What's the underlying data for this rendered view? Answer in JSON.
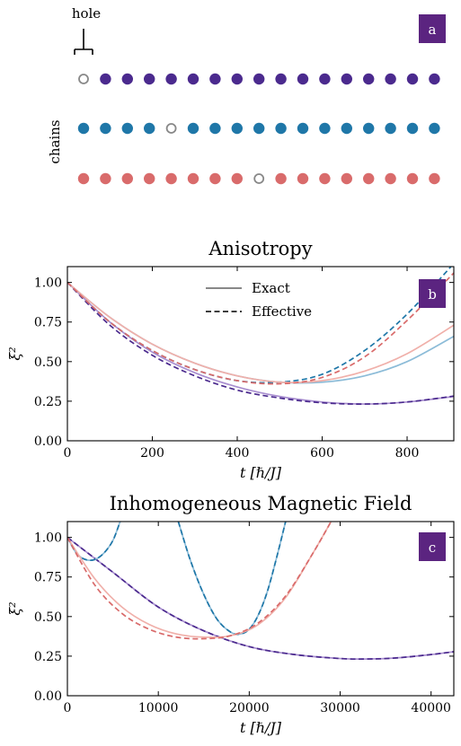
{
  "colors": {
    "purple": "#4b2a8e",
    "purple_light": "#a98fd0",
    "teal": "#1f77a8",
    "teal_light": "#8cbcd8",
    "salmon": "#d96b6b",
    "salmon_light": "#f0b0aa",
    "hole": "#888888",
    "badge": "#5b2480",
    "axis": "#000000"
  },
  "panel_a": {
    "badge": "a",
    "hole_label": "hole",
    "y_label": "chains",
    "sites_per_chain": 17,
    "chains": [
      {
        "color_key": "purple",
        "hole_index": 0
      },
      {
        "color_key": "teal",
        "hole_index": 4
      },
      {
        "color_key": "salmon",
        "hole_index": 8
      }
    ]
  },
  "chart_data": [
    {
      "type": "line",
      "panel": "b",
      "badge": "b",
      "title": "Anisotropy",
      "xlabel": "t [ℏ/J]",
      "ylabel": "ξ²",
      "xlim": [
        0,
        910
      ],
      "ylim": [
        0,
        1.1
      ],
      "xticks": [
        0,
        200,
        400,
        600,
        800
      ],
      "yticks": [
        0.0,
        0.25,
        0.5,
        0.75,
        1.0
      ],
      "xtick_labels": [
        "0",
        "200",
        "400",
        "600",
        "800"
      ],
      "ytick_labels": [
        "0.00",
        "0.25",
        "0.50",
        "0.75",
        "1.00"
      ],
      "legend": {
        "position": "top-center",
        "entries": [
          {
            "label": "Exact",
            "style": "solid"
          },
          {
            "label": "Effective",
            "style": "dashed"
          }
        ]
      },
      "series": [
        {
          "color_key": "purple_light",
          "style": "solid",
          "x": [
            0,
            100,
            200,
            300,
            400,
            500,
            600,
            700,
            800,
            910
          ],
          "y": [
            1.0,
            0.75,
            0.56,
            0.43,
            0.34,
            0.28,
            0.245,
            0.232,
            0.245,
            0.28
          ]
        },
        {
          "color_key": "purple",
          "style": "dashed",
          "x": [
            0,
            100,
            200,
            300,
            400,
            500,
            600,
            700,
            800,
            910
          ],
          "y": [
            1.0,
            0.73,
            0.54,
            0.41,
            0.32,
            0.27,
            0.24,
            0.232,
            0.245,
            0.282
          ]
        },
        {
          "color_key": "teal_light",
          "style": "solid",
          "x": [
            0,
            100,
            200,
            300,
            400,
            500,
            600,
            700,
            800,
            910
          ],
          "y": [
            1.0,
            0.78,
            0.61,
            0.49,
            0.41,
            0.37,
            0.37,
            0.41,
            0.5,
            0.66
          ]
        },
        {
          "color_key": "teal",
          "style": "dashed",
          "x": [
            0,
            100,
            200,
            300,
            400,
            500,
            600,
            700,
            800,
            910
          ],
          "y": [
            1.0,
            0.75,
            0.57,
            0.45,
            0.38,
            0.37,
            0.42,
            0.57,
            0.8,
            1.12
          ]
        },
        {
          "color_key": "salmon_light",
          "style": "solid",
          "x": [
            0,
            100,
            200,
            300,
            400,
            500,
            600,
            700,
            800,
            910
          ],
          "y": [
            1.0,
            0.78,
            0.61,
            0.49,
            0.41,
            0.37,
            0.38,
            0.44,
            0.55,
            0.73
          ]
        },
        {
          "color_key": "salmon",
          "style": "dashed",
          "x": [
            0,
            100,
            200,
            300,
            400,
            500,
            600,
            700,
            800,
            910
          ],
          "y": [
            1.0,
            0.75,
            0.57,
            0.45,
            0.38,
            0.36,
            0.4,
            0.53,
            0.76,
            1.06
          ]
        }
      ]
    },
    {
      "type": "line",
      "panel": "c",
      "badge": "c",
      "title": "Inhomogeneous Magnetic Field",
      "xlabel": "t [ℏ/J]",
      "ylabel": "ξ²",
      "xlim": [
        0,
        42500
      ],
      "ylim": [
        0,
        1.1
      ],
      "xticks": [
        0,
        10000,
        20000,
        30000,
        40000
      ],
      "yticks": [
        0.0,
        0.25,
        0.5,
        0.75,
        1.0
      ],
      "xtick_labels": [
        "0",
        "10000",
        "20000",
        "30000",
        "40000"
      ],
      "ytick_labels": [
        "0.00",
        "0.25",
        "0.50",
        "0.75",
        "1.00"
      ],
      "series": [
        {
          "color_key": "purple_light",
          "style": "solid",
          "x": [
            0,
            5000,
            10000,
            15000,
            20000,
            25000,
            30000,
            33000,
            36000,
            40000,
            42500
          ],
          "y": [
            1.0,
            0.78,
            0.56,
            0.41,
            0.31,
            0.26,
            0.235,
            0.232,
            0.238,
            0.26,
            0.278
          ]
        },
        {
          "color_key": "purple",
          "style": "dashed",
          "x": [
            0,
            5000,
            10000,
            15000,
            20000,
            25000,
            30000,
            33000,
            36000,
            40000,
            42500
          ],
          "y": [
            1.0,
            0.78,
            0.56,
            0.41,
            0.31,
            0.26,
            0.235,
            0.232,
            0.238,
            0.26,
            0.278
          ]
        },
        {
          "color_key": "teal_light",
          "style": "solid",
          "x": [
            0,
            1000,
            2000,
            3000,
            4000,
            5000,
            5800
          ],
          "y": [
            1.0,
            0.9,
            0.86,
            0.86,
            0.9,
            0.98,
            1.1
          ]
        },
        {
          "color_key": "teal",
          "style": "dashed",
          "x": [
            0,
            1000,
            2000,
            3000,
            4000,
            5000,
            5800
          ],
          "y": [
            1.0,
            0.9,
            0.86,
            0.86,
            0.9,
            0.98,
            1.1
          ]
        },
        {
          "color_key": "teal_light",
          "style": "solid",
          "x": [
            12200,
            13500,
            15000,
            16500,
            18000,
            19000,
            20000,
            21000,
            22000,
            23000,
            24000
          ],
          "y": [
            1.1,
            0.86,
            0.64,
            0.48,
            0.4,
            0.39,
            0.42,
            0.51,
            0.66,
            0.87,
            1.1
          ]
        },
        {
          "color_key": "teal",
          "style": "dashed",
          "x": [
            12200,
            13500,
            15000,
            16500,
            18000,
            19000,
            20000,
            21000,
            22000,
            23000,
            24000
          ],
          "y": [
            1.1,
            0.86,
            0.64,
            0.48,
            0.4,
            0.39,
            0.42,
            0.51,
            0.66,
            0.87,
            1.1
          ]
        },
        {
          "color_key": "salmon_light",
          "style": "solid",
          "x": [
            0,
            3000,
            6000,
            9000,
            12000,
            15000,
            18000,
            21000,
            24000,
            27000,
            29000
          ],
          "y": [
            1.0,
            0.74,
            0.56,
            0.45,
            0.39,
            0.37,
            0.38,
            0.45,
            0.62,
            0.9,
            1.1
          ]
        },
        {
          "color_key": "salmon",
          "style": "dashed",
          "x": [
            0,
            3000,
            6000,
            9000,
            12000,
            15000,
            18000,
            21000,
            24000,
            27000,
            29000
          ],
          "y": [
            1.0,
            0.7,
            0.52,
            0.42,
            0.37,
            0.36,
            0.38,
            0.46,
            0.63,
            0.9,
            1.1
          ]
        }
      ]
    }
  ]
}
